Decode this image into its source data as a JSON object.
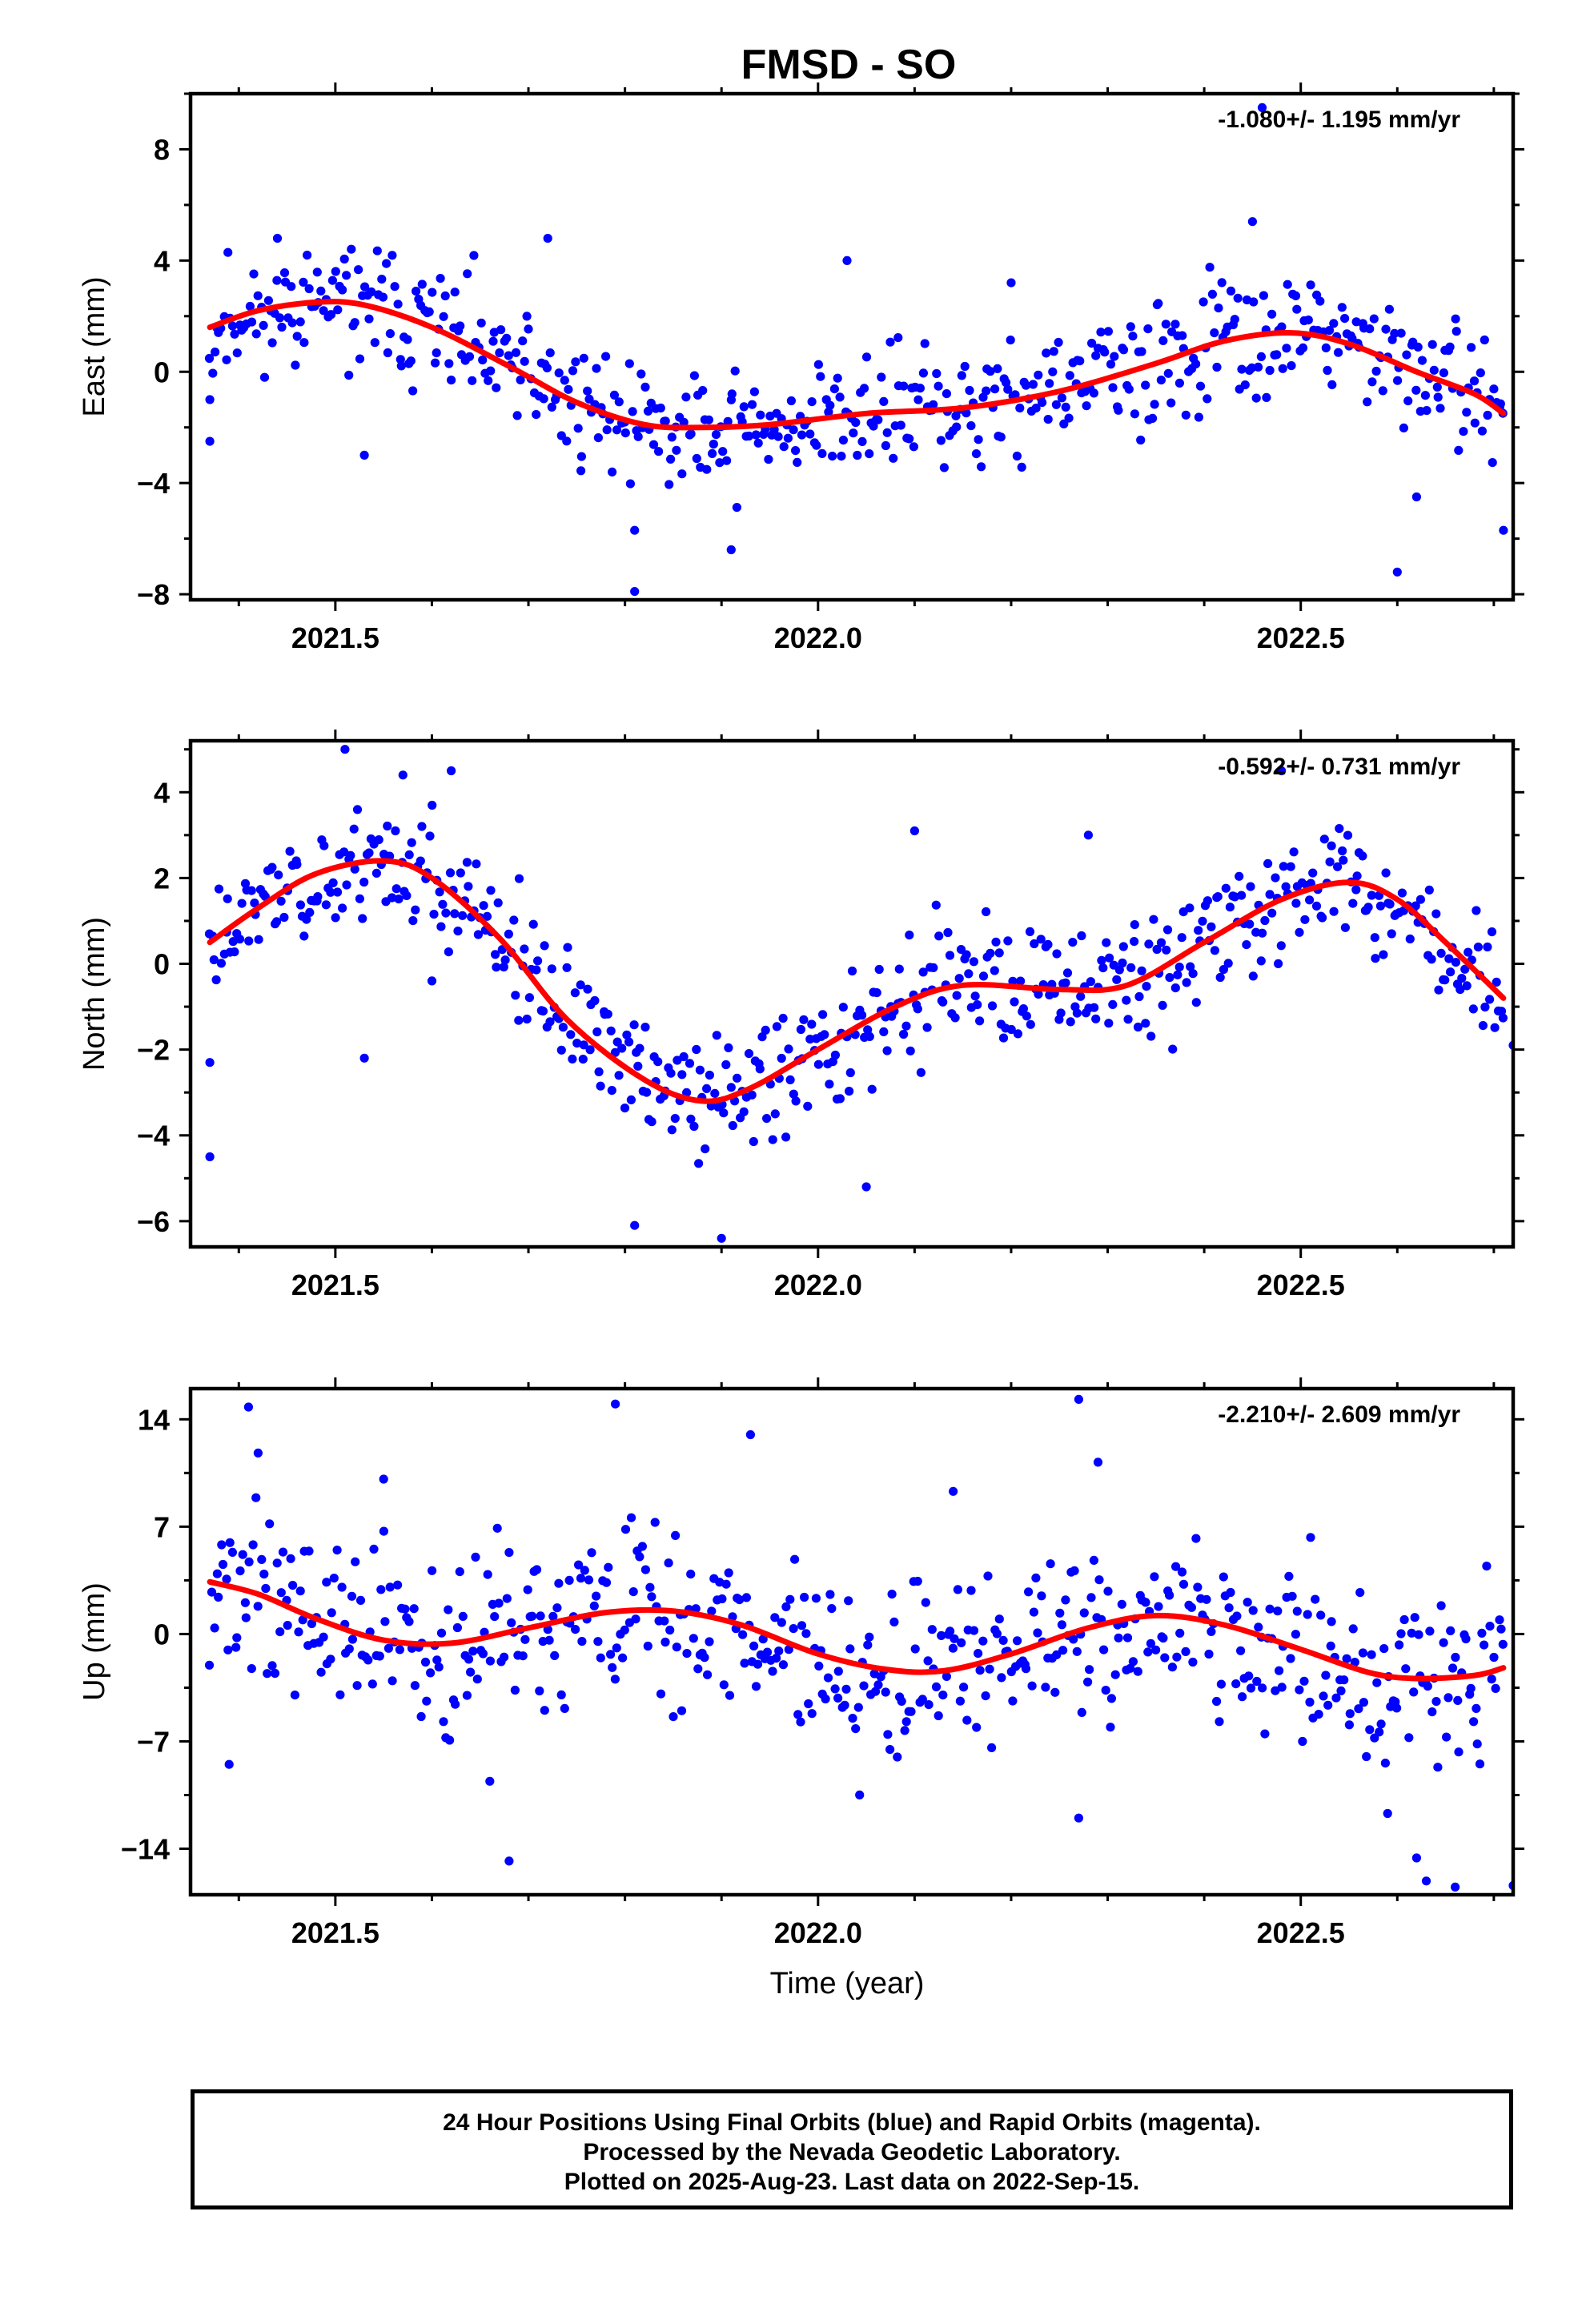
{
  "chart_data": {
    "type": "scatter",
    "title": "FMSD - SO",
    "xlabel": "Time (year)",
    "xlim": [
      2021.35,
      2022.72
    ],
    "x_ticks": [
      "2021.5",
      "2022.0",
      "2022.5"
    ],
    "fit_color": "#ff0000",
    "final_orbit_color": "#0000ff",
    "rapid_orbit_color": "#ff00ff",
    "panels": [
      {
        "ylabel": "East (mm)",
        "rate_label": "-1.080+/- 1.195 mm/yr",
        "ylim": [
          -8.2,
          10
        ],
        "y_ticks": [
          "8",
          "4",
          "0",
          "−4",
          "−8"
        ],
        "y_tick_values": [
          8,
          4,
          0,
          -4,
          -8
        ],
        "fit": [
          [
            2021.37,
            1.6
          ],
          [
            2021.42,
            2.2
          ],
          [
            2021.48,
            2.5
          ],
          [
            2021.53,
            2.4
          ],
          [
            2021.6,
            1.6
          ],
          [
            2021.68,
            0.2
          ],
          [
            2021.75,
            -1.1
          ],
          [
            2021.82,
            -1.9
          ],
          [
            2021.88,
            -2.0
          ],
          [
            2021.95,
            -1.9
          ],
          [
            2022.05,
            -1.5
          ],
          [
            2022.15,
            -1.3
          ],
          [
            2022.25,
            -0.7
          ],
          [
            2022.35,
            0.3
          ],
          [
            2022.42,
            1.1
          ],
          [
            2022.49,
            1.4
          ],
          [
            2022.55,
            1.0
          ],
          [
            2022.62,
            0.0
          ],
          [
            2022.68,
            -0.8
          ],
          [
            2022.71,
            -1.5
          ]
        ],
        "scatter_noise": 1.6,
        "seed": 11,
        "outliers": [
          [
            2021.37,
            -2.5
          ],
          [
            2021.37,
            -1.0
          ],
          [
            2021.53,
            -3.0
          ],
          [
            2021.81,
            -7.9
          ],
          [
            2021.81,
            -5.7
          ],
          [
            2021.91,
            -6.4
          ],
          [
            2022.46,
            9.5
          ],
          [
            2022.6,
            -7.2
          ],
          [
            2022.71,
            -5.7
          ],
          [
            2021.44,
            4.8
          ],
          [
            2021.72,
            4.8
          ],
          [
            2022.03,
            4.0
          ],
          [
            2022.45,
            5.4
          ],
          [
            2022.62,
            -4.5
          ],
          [
            2022.2,
            3.2
          ]
        ]
      },
      {
        "ylabel": "North (mm)",
        "rate_label": "-0.592+/- 0.731 mm/yr",
        "ylim": [
          -6.6,
          5.2
        ],
        "y_ticks": [
          "4",
          "2",
          "0",
          "−2",
          "−4",
          "−6"
        ],
        "y_tick_values": [
          4,
          2,
          0,
          -2,
          -4,
          -6
        ],
        "fit": [
          [
            2021.37,
            0.5
          ],
          [
            2021.42,
            1.3
          ],
          [
            2021.48,
            2.1
          ],
          [
            2021.55,
            2.4
          ],
          [
            2021.6,
            2.0
          ],
          [
            2021.67,
            0.6
          ],
          [
            2021.74,
            -1.3
          ],
          [
            2021.82,
            -2.7
          ],
          [
            2021.88,
            -3.2
          ],
          [
            2021.93,
            -2.9
          ],
          [
            2022.0,
            -2.0
          ],
          [
            2022.08,
            -1.0
          ],
          [
            2022.15,
            -0.5
          ],
          [
            2022.25,
            -0.6
          ],
          [
            2022.32,
            -0.5
          ],
          [
            2022.4,
            0.5
          ],
          [
            2022.48,
            1.5
          ],
          [
            2022.55,
            1.9
          ],
          [
            2022.6,
            1.5
          ],
          [
            2022.65,
            0.5
          ],
          [
            2022.71,
            -0.8
          ]
        ],
        "scatter_noise": 1.0,
        "seed": 23,
        "outliers": [
          [
            2021.37,
            -4.5
          ],
          [
            2021.37,
            -2.3
          ],
          [
            2021.53,
            -2.2
          ],
          [
            2021.81,
            -6.1
          ],
          [
            2021.9,
            -6.4
          ],
          [
            2021.51,
            5.0
          ],
          [
            2021.57,
            4.4
          ],
          [
            2021.62,
            4.5
          ],
          [
            2022.1,
            3.1
          ],
          [
            2022.05,
            -5.2
          ],
          [
            2022.48,
            4.5
          ],
          [
            2021.6,
            -0.4
          ],
          [
            2022.28,
            3.0
          ],
          [
            2022.72,
            -1.9
          ]
        ]
      },
      {
        "ylabel": "Up (mm)",
        "rate_label": "-2.210+/- 2.609 mm/yr",
        "ylim": [
          -17,
          16
        ],
        "y_ticks": [
          "14",
          "7",
          "0",
          "−7",
          "−14"
        ],
        "y_tick_values": [
          14,
          7,
          0,
          -7,
          -14
        ],
        "fit": [
          [
            2021.37,
            3.4
          ],
          [
            2021.42,
            2.6
          ],
          [
            2021.48,
            1.0
          ],
          [
            2021.55,
            -0.4
          ],
          [
            2021.62,
            -0.6
          ],
          [
            2021.7,
            0.4
          ],
          [
            2021.78,
            1.4
          ],
          [
            2021.85,
            1.5
          ],
          [
            2021.92,
            0.6
          ],
          [
            2022.0,
            -1.3
          ],
          [
            2022.07,
            -2.3
          ],
          [
            2022.13,
            -2.4
          ],
          [
            2022.2,
            -1.3
          ],
          [
            2022.28,
            0.4
          ],
          [
            2022.35,
            1.2
          ],
          [
            2022.42,
            0.6
          ],
          [
            2022.5,
            -1.0
          ],
          [
            2022.57,
            -2.5
          ],
          [
            2022.62,
            -2.9
          ],
          [
            2022.68,
            -2.7
          ],
          [
            2022.71,
            -2.2
          ]
        ],
        "scatter_noise": 4.0,
        "seed": 37,
        "outliers": [
          [
            2021.41,
            14.8
          ],
          [
            2021.42,
            11.8
          ],
          [
            2021.39,
            -8.5
          ],
          [
            2021.68,
            -14.8
          ],
          [
            2021.79,
            15.0
          ],
          [
            2021.93,
            13.0
          ],
          [
            2022.27,
            15.3
          ],
          [
            2022.27,
            -12.0
          ],
          [
            2022.59,
            -11.7
          ],
          [
            2022.62,
            -14.6
          ],
          [
            2022.63,
            -16.1
          ],
          [
            2022.66,
            -16.5
          ],
          [
            2022.72,
            -16.4
          ],
          [
            2021.55,
            10.1
          ],
          [
            2022.29,
            11.2
          ],
          [
            2021.66,
            -9.6
          ],
          [
            2022.14,
            9.3
          ]
        ]
      }
    ]
  },
  "footer": {
    "line1": "24 Hour Positions Using Final Orbits (blue) and Rapid Orbits (magenta).",
    "line2": "Processed by the Nevada Geodetic Laboratory.",
    "line3": "Plotted on 2025-Aug-23. Last data on 2022-Sep-15."
  }
}
